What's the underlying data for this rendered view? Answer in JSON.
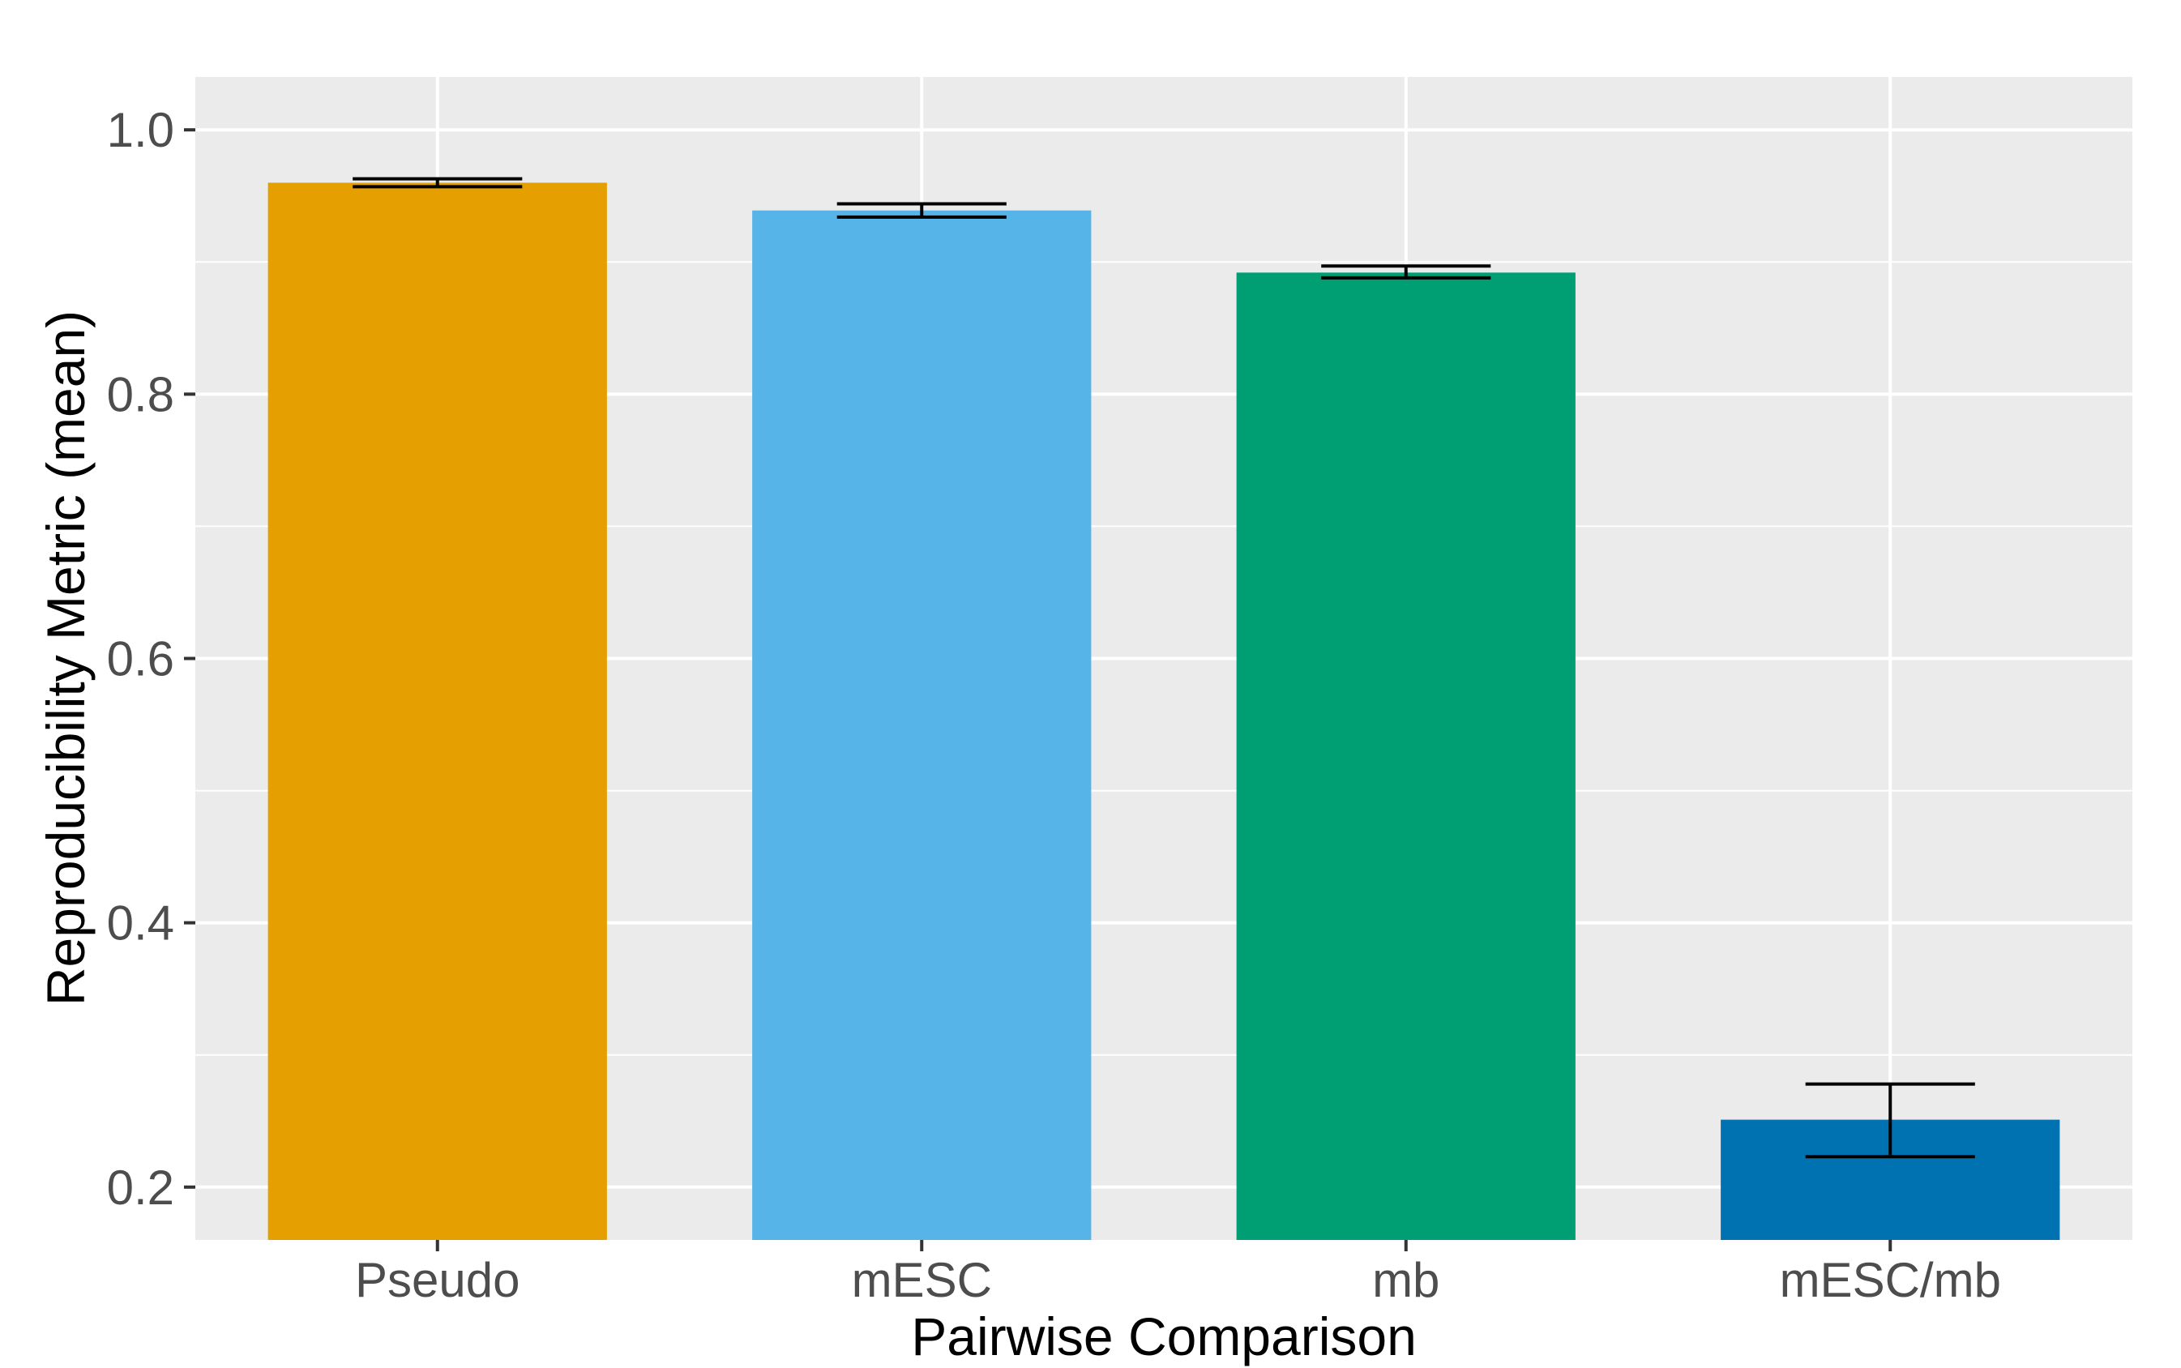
{
  "chart_data": {
    "type": "bar",
    "title": "",
    "xlabel": "Pairwise Comparison",
    "ylabel": "Reproducibility Metric (mean)",
    "categories": [
      "Pseudo",
      "mESC",
      "mb",
      "mESC/mb"
    ],
    "values": [
      0.96,
      0.939,
      0.892,
      0.251
    ],
    "error_low": [
      0.957,
      0.934,
      0.888,
      0.223
    ],
    "error_high": [
      0.963,
      0.944,
      0.897,
      0.278
    ],
    "bar_colors": [
      "#E69F00",
      "#56B4E9",
      "#009E73",
      "#0072B2"
    ],
    "ylim": [
      0.16,
      1.04
    ],
    "yticks": [
      0.2,
      0.4,
      0.6,
      0.8,
      1.0
    ],
    "ytick_labels": [
      "0.2",
      "0.4",
      "0.6",
      "0.8",
      "1.0"
    ],
    "panel_background": "#EBEBEB",
    "grid": true,
    "legend": "none"
  }
}
